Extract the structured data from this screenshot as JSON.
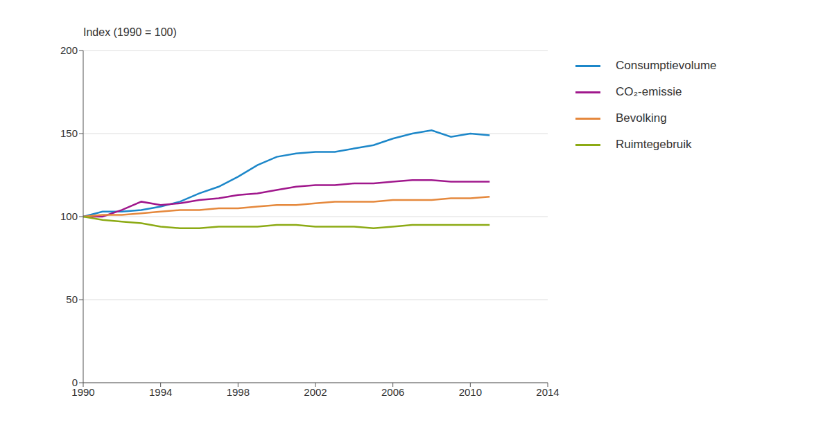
{
  "chart_data": {
    "type": "line",
    "y_label": "Index (1990 = 100)",
    "x": [
      1990,
      1991,
      1992,
      1993,
      1994,
      1995,
      1996,
      1997,
      1998,
      1999,
      2000,
      2001,
      2002,
      2003,
      2004,
      2005,
      2006,
      2007,
      2008,
      2009,
      2010,
      2011
    ],
    "series": [
      {
        "name": "Consumptievolume",
        "color": "#1c87c9",
        "values": [
          100,
          103,
          103,
          104,
          106,
          109,
          114,
          118,
          124,
          131,
          136,
          138,
          139,
          139,
          141,
          143,
          147,
          150,
          152,
          148,
          150,
          149
        ]
      },
      {
        "name": "CO₂-emissie",
        "color": "#a0178c",
        "values": [
          100,
          100,
          104,
          109,
          107,
          108,
          110,
          111,
          113,
          114,
          116,
          118,
          119,
          119,
          120,
          120,
          121,
          122,
          122,
          121,
          121,
          121
        ]
      },
      {
        "name": "Bevolking",
        "color": "#e5883c",
        "values": [
          100,
          101,
          101,
          102,
          103,
          104,
          104,
          105,
          105,
          106,
          107,
          107,
          108,
          109,
          109,
          109,
          110,
          110,
          110,
          111,
          111,
          112
        ]
      },
      {
        "name": "Ruimtegebruik",
        "color": "#8caa14",
        "values": [
          100,
          98,
          97,
          96,
          94,
          93,
          93,
          94,
          94,
          94,
          95,
          95,
          94,
          94,
          94,
          93,
          94,
          95,
          95,
          95,
          95,
          95
        ]
      }
    ],
    "xlim": [
      1990,
      2014
    ],
    "xticks": [
      1990,
      1994,
      1998,
      2002,
      2006,
      2010,
      2014
    ],
    "ylim": [
      0,
      200
    ],
    "yticks": [
      0,
      50,
      100,
      150,
      200
    ],
    "grid": true,
    "legend": "right"
  }
}
